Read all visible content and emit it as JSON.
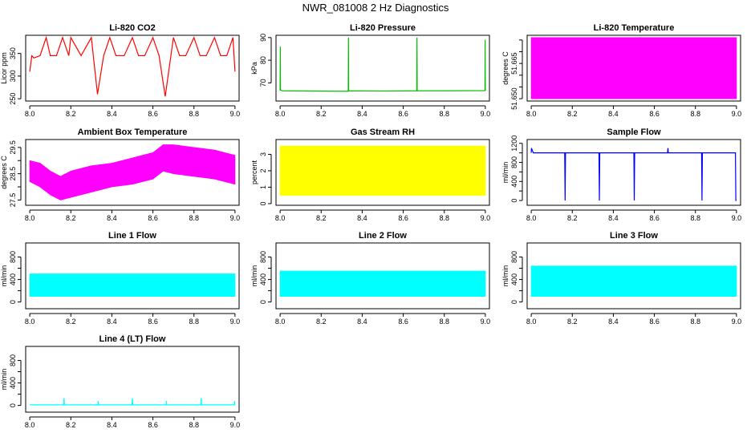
{
  "suptitle": "NWR_081008  2 Hz Diagnostics",
  "colors": {
    "red": "#ff0000",
    "green": "#00c000",
    "magenta": "#ff00ff",
    "yellow": "#ffff00",
    "blue": "#0000ff",
    "cyan": "#00ffff"
  },
  "chart_data": [
    {
      "id": "co2",
      "type": "line",
      "title": "Li-820 CO2",
      "ylabel": "Licor ppm",
      "color": "#ff0000",
      "xlim": [
        7.98,
        9.02
      ],
      "ylim": [
        245,
        390
      ],
      "xticks": [
        8.0,
        8.2,
        8.4,
        8.6,
        8.8,
        9.0
      ],
      "xtick_labels": [
        "8.0",
        "8.2",
        "8.4",
        "8.6",
        "8.8",
        "9.0"
      ],
      "yticks": [
        250,
        300,
        350
      ],
      "ytick_labels": [
        "250",
        "300",
        "350"
      ],
      "x": [
        8.0,
        8.01,
        8.02,
        8.05,
        8.08,
        8.1,
        8.13,
        8.16,
        8.19,
        8.2,
        8.25,
        8.3,
        8.33,
        8.36,
        8.39,
        8.42,
        8.46,
        8.5,
        8.53,
        8.56,
        8.6,
        8.63,
        8.66,
        8.7,
        8.73,
        8.76,
        8.8,
        8.83,
        8.86,
        8.9,
        8.93,
        8.96,
        8.99,
        9.0
      ],
      "y": [
        310,
        345,
        340,
        345,
        385,
        345,
        345,
        385,
        345,
        385,
        345,
        385,
        260,
        345,
        385,
        345,
        345,
        385,
        345,
        345,
        385,
        345,
        255,
        385,
        345,
        345,
        385,
        345,
        345,
        385,
        345,
        345,
        385,
        310
      ]
    },
    {
      "id": "pressure",
      "type": "line",
      "title": "Li-820 Pressure",
      "ylabel": "kPa",
      "color": "#00c000",
      "xlim": [
        7.98,
        9.02
      ],
      "ylim": [
        62,
        91
      ],
      "xticks": [
        8.0,
        8.2,
        8.4,
        8.6,
        8.8,
        9.0
      ],
      "xtick_labels": [
        "8.0",
        "8.2",
        "8.4",
        "8.6",
        "8.8",
        "9.0"
      ],
      "yticks": [
        70,
        80,
        90
      ],
      "ytick_labels": [
        "70",
        "80",
        "90"
      ],
      "x": [
        8.0,
        8.001,
        8.002,
        8.01,
        8.332,
        8.333,
        8.334,
        8.5,
        8.666,
        8.667,
        8.668,
        8.8,
        8.998,
        8.999,
        9.0
      ],
      "y": [
        66.5,
        86,
        67,
        66.5,
        66.3,
        90,
        66.5,
        66.4,
        66.5,
        90,
        66.5,
        66.5,
        66.6,
        89,
        66.6
      ]
    },
    {
      "id": "temperature",
      "type": "area",
      "title": "Li-820 Temperature",
      "ylabel": "degrees C",
      "color": "#ff00ff",
      "xlim": [
        7.98,
        9.02
      ],
      "ylim": [
        51.649,
        51.677
      ],
      "xticks": [
        8.0,
        8.2,
        8.4,
        8.6,
        8.8,
        9.0
      ],
      "xtick_labels": [
        "8.0",
        "8.2",
        "8.4",
        "8.6",
        "8.8",
        "9.0"
      ],
      "yticks": [
        51.65,
        51.655,
        51.66,
        51.665,
        51.67,
        51.675
      ],
      "ytick_labels": [
        "51.650",
        "",
        "",
        "51.665",
        "",
        ""
      ],
      "x": [
        8.0,
        9.0
      ],
      "low": [
        51.65,
        51.65
      ],
      "high": [
        51.676,
        51.676
      ]
    },
    {
      "id": "ambient",
      "type": "area",
      "title": "Ambient Box Temperature",
      "ylabel": "degrees C",
      "color": "#ff00ff",
      "xlim": [
        7.98,
        9.02
      ],
      "ylim": [
        27.3,
        29.8
      ],
      "xticks": [
        8.0,
        8.2,
        8.4,
        8.6,
        8.8,
        9.0
      ],
      "xtick_labels": [
        "8.0",
        "8.2",
        "8.4",
        "8.6",
        "8.8",
        "9.0"
      ],
      "yticks": [
        27.5,
        28.0,
        28.5,
        29.0,
        29.5
      ],
      "ytick_labels": [
        "27.5",
        "",
        "28.5",
        "",
        "29.5"
      ],
      "x": [
        8.0,
        8.05,
        8.1,
        8.15,
        8.2,
        8.3,
        8.4,
        8.5,
        8.55,
        8.6,
        8.65,
        8.7,
        8.8,
        8.9,
        9.0
      ],
      "low": [
        28.2,
        28.0,
        27.7,
        27.5,
        27.6,
        27.8,
        28.0,
        28.1,
        28.2,
        28.3,
        28.6,
        28.5,
        28.4,
        28.3,
        28.1
      ],
      "high": [
        29.0,
        28.9,
        28.6,
        28.4,
        28.6,
        28.8,
        28.9,
        29.1,
        29.2,
        29.3,
        29.6,
        29.6,
        29.5,
        29.4,
        29.2
      ]
    },
    {
      "id": "rh",
      "type": "area",
      "title": "Gas Stream RH",
      "ylabel": "percent",
      "color": "#ffff00",
      "xlim": [
        7.98,
        9.02
      ],
      "ylim": [
        -0.1,
        3.9
      ],
      "xticks": [
        8.0,
        8.2,
        8.4,
        8.6,
        8.8,
        9.0
      ],
      "xtick_labels": [
        "8.0",
        "8.2",
        "8.4",
        "8.6",
        "8.8",
        "9.0"
      ],
      "yticks": [
        0,
        1,
        2,
        3
      ],
      "ytick_labels": [
        "0",
        "1",
        "2",
        "3"
      ],
      "x": [
        8.0,
        9.0
      ],
      "low": [
        0.5,
        0.5
      ],
      "high": [
        3.5,
        3.5
      ]
    },
    {
      "id": "sampleflow",
      "type": "line",
      "title": "Sample Flow",
      "ylabel": "ml/min",
      "color": "#0000ff",
      "xlim": [
        7.98,
        9.02
      ],
      "ylim": [
        -100,
        1280
      ],
      "xticks": [
        8.0,
        8.2,
        8.4,
        8.6,
        8.8,
        9.0
      ],
      "xtick_labels": [
        "8.0",
        "8.2",
        "8.4",
        "8.6",
        "8.8",
        "9.0"
      ],
      "yticks": [
        0,
        200,
        400,
        600,
        800,
        1000,
        1200
      ],
      "ytick_labels": [
        "0",
        "",
        "400",
        "",
        "800",
        "",
        "1200"
      ],
      "x": [
        8.0,
        8.001,
        8.01,
        8.163,
        8.165,
        8.167,
        8.33,
        8.332,
        8.334,
        8.5,
        8.502,
        8.504,
        8.664,
        8.666,
        8.668,
        8.83,
        8.832,
        8.834,
        8.995,
        8.997,
        9.0
      ],
      "y": [
        1000,
        1100,
        1000,
        1000,
        0,
        1000,
        1000,
        0,
        1000,
        1000,
        0,
        1000,
        1000,
        1100,
        1000,
        1000,
        0,
        1000,
        1000,
        0,
        0
      ]
    },
    {
      "id": "line1",
      "type": "area",
      "title": "Line 1 Flow",
      "ylabel": "ml/min",
      "color": "#00ffff",
      "xlim": [
        7.98,
        9.02
      ],
      "ylim": [
        -120,
        1050
      ],
      "xticks": [
        8.0,
        8.2,
        8.4,
        8.6,
        8.8,
        9.0
      ],
      "xtick_labels": [
        "8.0",
        "8.2",
        "8.4",
        "8.6",
        "8.8",
        "9.0"
      ],
      "yticks": [
        0,
        200,
        400,
        600,
        800
      ],
      "ytick_labels": [
        "0",
        "",
        "400",
        "",
        "800"
      ],
      "x": [
        8.0,
        9.0
      ],
      "low": [
        100,
        100
      ],
      "high": [
        500,
        500
      ]
    },
    {
      "id": "line2",
      "type": "area",
      "title": "Line 2 Flow",
      "ylabel": "ml/min",
      "color": "#00ffff",
      "xlim": [
        7.98,
        9.02
      ],
      "ylim": [
        -120,
        1050
      ],
      "xticks": [
        8.0,
        8.2,
        8.4,
        8.6,
        8.8,
        9.0
      ],
      "xtick_labels": [
        "8.0",
        "8.2",
        "8.4",
        "8.6",
        "8.8",
        "9.0"
      ],
      "yticks": [
        0,
        200,
        400,
        600,
        800
      ],
      "ytick_labels": [
        "0",
        "",
        "400",
        "",
        "800"
      ],
      "x": [
        8.0,
        9.0
      ],
      "low": [
        100,
        100
      ],
      "high": [
        550,
        550
      ]
    },
    {
      "id": "line3",
      "type": "area",
      "title": "Line 3 Flow",
      "ylabel": "ml/min",
      "color": "#00ffff",
      "xlim": [
        7.98,
        9.02
      ],
      "ylim": [
        -120,
        1050
      ],
      "xticks": [
        8.0,
        8.2,
        8.4,
        8.6,
        8.8,
        9.0
      ],
      "xtick_labels": [
        "8.0",
        "8.2",
        "8.4",
        "8.6",
        "8.8",
        "9.0"
      ],
      "yticks": [
        0,
        200,
        400,
        600,
        800
      ],
      "ytick_labels": [
        "0",
        "",
        "400",
        "",
        "800"
      ],
      "x": [
        8.0,
        9.0
      ],
      "low": [
        100,
        100
      ],
      "high": [
        640,
        640
      ]
    },
    {
      "id": "line4",
      "type": "line",
      "title": "Line 4 (LT) Flow",
      "ylabel": "ml/min",
      "color": "#00ffff",
      "xlim": [
        7.98,
        9.02
      ],
      "ylim": [
        -120,
        1050
      ],
      "xticks": [
        8.0,
        8.2,
        8.4,
        8.6,
        8.8,
        9.0
      ],
      "xtick_labels": [
        "8.0",
        "8.2",
        "8.4",
        "8.6",
        "8.8",
        "9.0"
      ],
      "yticks": [
        0,
        200,
        400,
        600,
        800
      ],
      "ytick_labels": [
        "0",
        "",
        "400",
        "",
        "800"
      ],
      "x": [
        8.0,
        8.165,
        8.167,
        8.169,
        8.332,
        8.333,
        8.334,
        8.498,
        8.5,
        8.502,
        8.665,
        8.666,
        8.667,
        8.833,
        8.835,
        8.837,
        8.997,
        8.998,
        8.999,
        9.0
      ],
      "y": [
        10,
        10,
        130,
        10,
        10,
        80,
        10,
        10,
        130,
        10,
        10,
        80,
        10,
        10,
        130,
        10,
        10,
        80,
        10,
        10
      ]
    }
  ]
}
